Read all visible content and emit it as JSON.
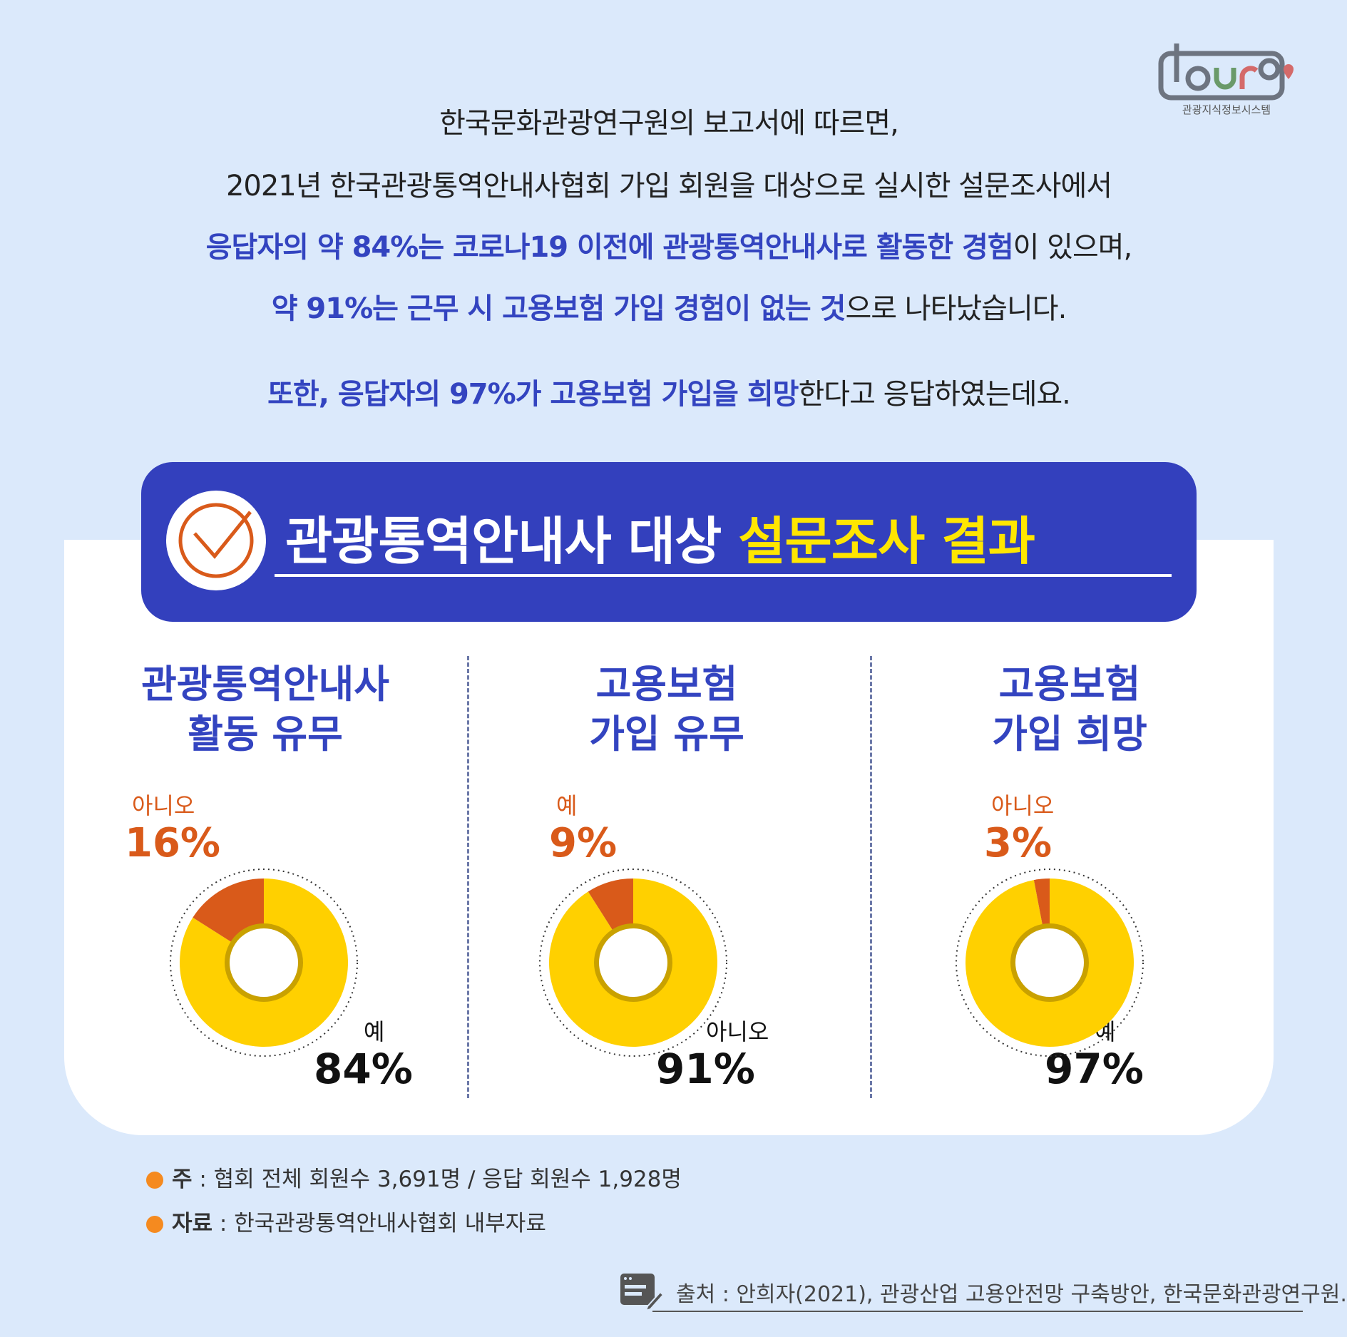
{
  "logo": {
    "text": "tourg",
    "subtitle": "관광지식정보시스템"
  },
  "intro": {
    "line1": "한국문화관광연구원의 보고서에 따르면,",
    "line2": "2021년 한국관광통역안내사협회 가입 회원을 대상으로 실시한 설문조사에서",
    "line3_hl": "응답자의 약 84%는 코로나19 이전에 관광통역안내사로 활동한 경험",
    "line3_rest": "이 있으며,",
    "line4_hl": "약 91%는 근무 시 고용보험 가입 경험이  없는 것",
    "line4_rest": "으로 나타났습니다.",
    "line5_hl": "또한, 응답자의 97%가 고용보험 가입을 희망",
    "line5_rest": "한다고 응답하였는데요."
  },
  "banner": {
    "title_white": "관광통역안내사 대상 ",
    "title_yellow": "설문조사 결과"
  },
  "colors": {
    "accent": "#3340bd",
    "highlight": "#ffe600",
    "minor": "#d95a1a",
    "major": "#ffd000",
    "ring": "#c9a100"
  },
  "chart_data": [
    {
      "type": "pie",
      "title_line1": "관광통역안내사",
      "title_line2": "활동 유무",
      "slices": [
        {
          "label": "아니오",
          "value": 16,
          "display": "16%"
        },
        {
          "label": "예",
          "value": 84,
          "display": "84%"
        }
      ]
    },
    {
      "type": "pie",
      "title_line1": "고용보험",
      "title_line2": "가입 유무",
      "slices": [
        {
          "label": "예",
          "value": 9,
          "display": "9%"
        },
        {
          "label": "아니오",
          "value": 91,
          "display": "91%"
        }
      ]
    },
    {
      "type": "pie",
      "title_line1": "고용보험",
      "title_line2": "가입 희망",
      "slices": [
        {
          "label": "아니오",
          "value": 3,
          "display": "3%"
        },
        {
          "label": "예",
          "value": 97,
          "display": "97%"
        }
      ]
    }
  ],
  "notes": [
    {
      "key": "주",
      "text": " : 협회 전체 회원수 3,691명 / 응답 회원수 1,928명"
    },
    {
      "key": "자료",
      "text": " : 한국관광통역안내사협회 내부자료"
    }
  ],
  "source": "출처 : 안희자(2021), 관광산업 고용안전망 구축방안, 한국문화관광연구원."
}
